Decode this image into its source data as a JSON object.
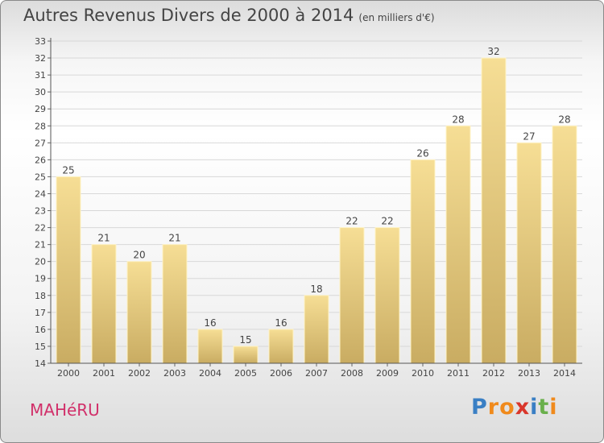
{
  "title": "Autres Revenus Divers de 2000 à 2014",
  "subtitle": "(en milliers d'€)",
  "commune": "MAHéRU",
  "logo": {
    "letters": [
      "P",
      "r",
      "o",
      "x",
      "i",
      "t",
      "i"
    ],
    "colors": [
      "#3a7fc4",
      "#f08a1c",
      "#f08a1c",
      "#d9362b",
      "#3a7fc4",
      "#6ab04c",
      "#f08a1c"
    ]
  },
  "colors": {
    "bar": "#e6cd84",
    "text": "#444444"
  },
  "chart_data": {
    "type": "bar",
    "title": "Autres Revenus Divers de 2000 à 2014",
    "subtitle": "(en milliers d'€)",
    "xlabel": "",
    "ylabel": "",
    "ylim": [
      14,
      33
    ],
    "yticks": [
      14,
      15,
      16,
      17,
      18,
      19,
      20,
      21,
      22,
      23,
      24,
      25,
      26,
      27,
      28,
      29,
      30,
      31,
      32,
      33
    ],
    "categories": [
      "2000",
      "2001",
      "2002",
      "2003",
      "2004",
      "2005",
      "2006",
      "2007",
      "2008",
      "2009",
      "2010",
      "2011",
      "2012",
      "2013",
      "2014"
    ],
    "values": [
      25,
      21,
      20,
      21,
      16,
      15,
      16,
      18,
      22,
      22,
      26,
      28,
      32,
      27,
      28
    ],
    "grid": true,
    "data_labels": true
  }
}
